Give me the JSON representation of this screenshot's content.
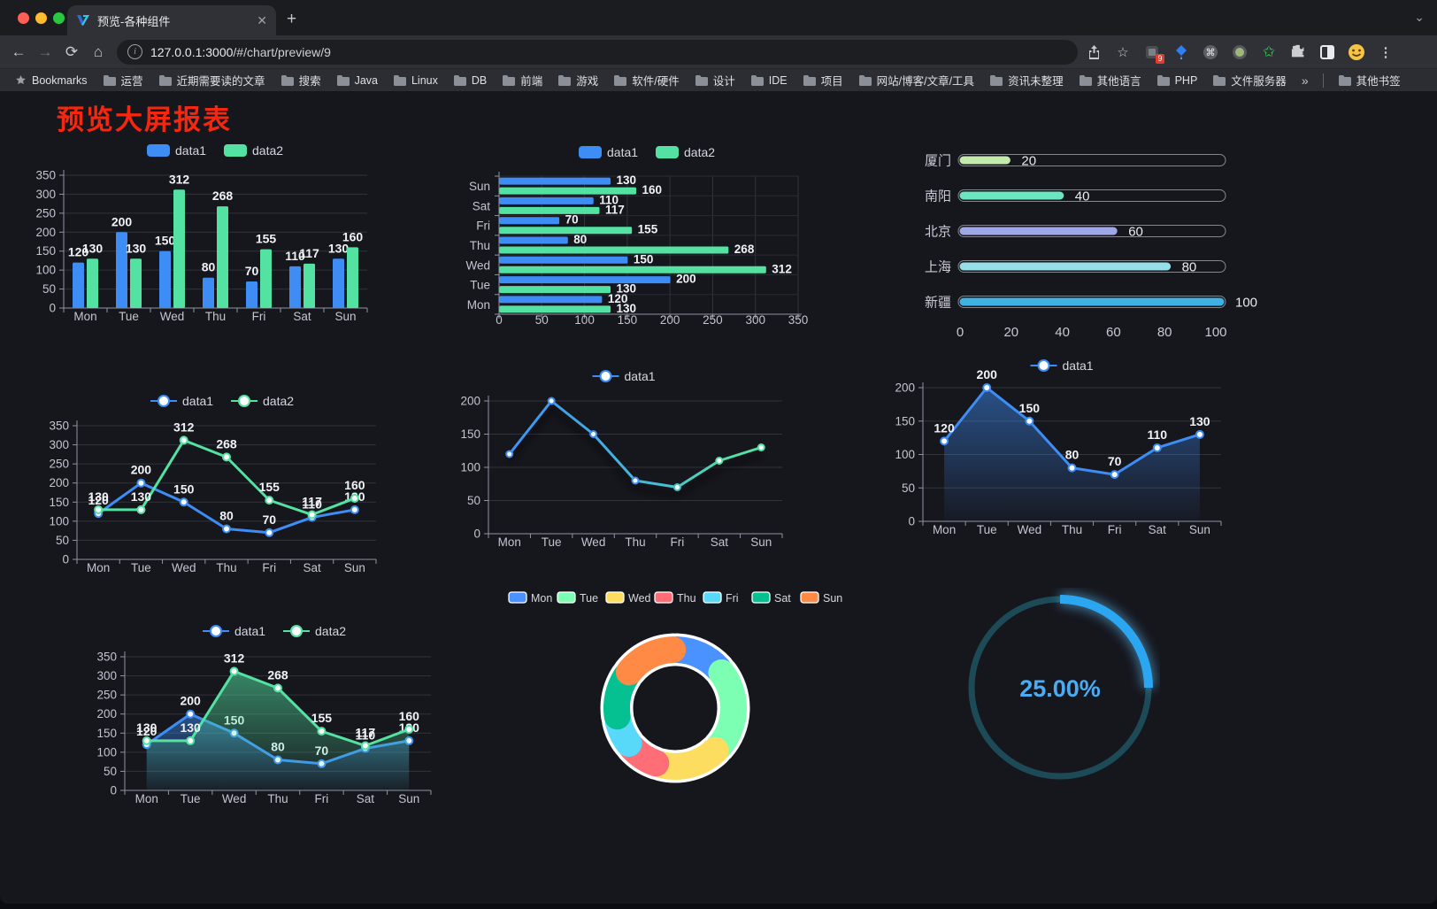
{
  "browser": {
    "tab_title": "预览-各种组件",
    "url_host": "127.0.0.1:3000",
    "url_path": "/#/chart/preview/9",
    "bookmarks_label": "Bookmarks",
    "bookmark_folders": [
      "运营",
      "近期需要读的文章",
      "搜索",
      "Java",
      "Linux",
      "DB",
      "前端",
      "游戏",
      "软件/硬件",
      "设计",
      "IDE",
      "项目",
      "网站/博客/文章/工具",
      "资讯未整理",
      "其他语言",
      "PHP",
      "文件服务器"
    ],
    "bookmarks_overflow": "»",
    "other_bookmarks": "其他书签",
    "extension_badge": "9"
  },
  "page": {
    "title": "预览大屏报表",
    "title_color": "#f5270e",
    "background": "#16161d"
  },
  "chart_data": [
    {
      "id": "bar1",
      "type": "bar",
      "categories": [
        "Mon",
        "Tue",
        "Wed",
        "Thu",
        "Fri",
        "Sat",
        "Sun"
      ],
      "series": [
        {
          "name": "data1",
          "color": "#3d8df5",
          "values": [
            120,
            200,
            150,
            80,
            70,
            110,
            130
          ]
        },
        {
          "name": "data2",
          "color": "#53e2a1",
          "values": [
            130,
            130,
            312,
            268,
            155,
            117,
            160
          ]
        }
      ],
      "ylim": [
        0,
        350
      ],
      "ystep": 50,
      "labels": true,
      "legend_position": "top",
      "grid": true
    },
    {
      "id": "hbar",
      "type": "bar-horizontal",
      "categories": [
        "Sun",
        "Sat",
        "Fri",
        "Thu",
        "Wed",
        "Tue",
        "Mon"
      ],
      "series": [
        {
          "name": "data1",
          "color": "#3d8df5",
          "values": [
            130,
            110,
            70,
            80,
            150,
            200,
            120
          ]
        },
        {
          "name": "data2",
          "color": "#53e2a1",
          "values": [
            160,
            117,
            155,
            268,
            312,
            130,
            130
          ]
        }
      ],
      "xlim": [
        0,
        350
      ],
      "xstep": 50,
      "labels": true,
      "legend_position": "top",
      "grid": true
    },
    {
      "id": "prog",
      "type": "progress-bars",
      "items": [
        {
          "label": "厦门",
          "value": 20,
          "color": "#c4ebad"
        },
        {
          "label": "南阳",
          "value": 40,
          "color": "#6be6c1"
        },
        {
          "label": "北京",
          "value": 60,
          "color": "#a0a7e6"
        },
        {
          "label": "上海",
          "value": 80,
          "color": "#96dee8"
        },
        {
          "label": "新疆",
          "value": 100,
          "color": "#3fb1e3"
        }
      ],
      "max": 100,
      "axis_ticks": [
        0,
        20,
        40,
        60,
        80,
        100
      ]
    },
    {
      "id": "line2",
      "type": "line",
      "categories": [
        "Mon",
        "Tue",
        "Wed",
        "Thu",
        "Fri",
        "Sat",
        "Sun"
      ],
      "series": [
        {
          "name": "data1",
          "color": "#3d8df5",
          "values": [
            120,
            200,
            150,
            80,
            70,
            110,
            130
          ]
        },
        {
          "name": "data2",
          "color": "#53e2a1",
          "values": [
            130,
            130,
            312,
            268,
            155,
            117,
            160
          ]
        }
      ],
      "ylim": [
        0,
        350
      ],
      "ystep": 50,
      "labels": true,
      "legend_position": "top",
      "grid": true
    },
    {
      "id": "lineg",
      "type": "line",
      "categories": [
        "Mon",
        "Tue",
        "Wed",
        "Thu",
        "Fri",
        "Sat",
        "Sun"
      ],
      "series": [
        {
          "name": "data1",
          "color": "#3d8df5",
          "color_end": "#53e2a1",
          "gradient": true,
          "values": [
            120,
            200,
            150,
            80,
            70,
            110,
            130
          ]
        }
      ],
      "ylim": [
        0,
        200
      ],
      "ystep": 50,
      "labels": false,
      "legend_position": "top",
      "grid": true,
      "shadow": true
    },
    {
      "id": "area1",
      "type": "area",
      "categories": [
        "Mon",
        "Tue",
        "Wed",
        "Thu",
        "Fri",
        "Sat",
        "Sun"
      ],
      "series": [
        {
          "name": "data1",
          "color": "#3d8df5",
          "area": true,
          "values": [
            120,
            200,
            150,
            80,
            70,
            110,
            130
          ]
        }
      ],
      "ylim": [
        0,
        200
      ],
      "ystep": 50,
      "labels": true,
      "legend_position": "top",
      "grid": true
    },
    {
      "id": "area2",
      "type": "area",
      "categories": [
        "Mon",
        "Tue",
        "Wed",
        "Thu",
        "Fri",
        "Sat",
        "Sun"
      ],
      "series": [
        {
          "name": "data1",
          "color": "#3d8df5",
          "area": true,
          "values": [
            120,
            200,
            150,
            80,
            70,
            110,
            130
          ]
        },
        {
          "name": "data2",
          "color": "#53e2a1",
          "area": true,
          "values": [
            130,
            130,
            312,
            268,
            155,
            117,
            160
          ]
        }
      ],
      "ylim": [
        0,
        350
      ],
      "ystep": 50,
      "labels": true,
      "legend_position": "top",
      "grid": true
    },
    {
      "id": "donut",
      "type": "pie",
      "categories": [
        "Mon",
        "Tue",
        "Wed",
        "Thu",
        "Fri",
        "Sat",
        "Sun"
      ],
      "values": [
        120,
        200,
        150,
        80,
        70,
        110,
        130
      ],
      "colors": [
        "#4992ff",
        "#7cffb2",
        "#fddd60",
        "#ff6e76",
        "#58d9f9",
        "#05c091",
        "#ff8a45"
      ],
      "legend_position": "top",
      "inner_radius": true,
      "border_color": "#ffffff"
    },
    {
      "id": "gauge",
      "type": "gauge",
      "value": 25,
      "label": "25.00%",
      "arc_color": "#2ba6f0",
      "track_color": "#1d4a57",
      "text_color": "#4aacf2"
    }
  ]
}
